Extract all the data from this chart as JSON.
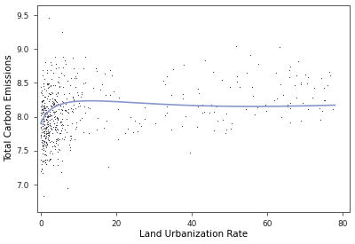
{
  "title": "",
  "xlabel": "Land Urbanization Rate",
  "ylabel": "Total Carbon Emissions",
  "xlim": [
    -1,
    82
  ],
  "ylim": [
    6.6,
    9.65
  ],
  "xticks": [
    0,
    20,
    40,
    60,
    80
  ],
  "yticks": [
    7.0,
    7.5,
    8.0,
    8.5,
    9.0,
    9.5
  ],
  "scatter_color": "#1a1a2e",
  "line_color": "#8898cc",
  "marker_size": 3,
  "background_color": "#ffffff",
  "seed": 12345,
  "n_dense": 420,
  "n_sparse": 130
}
